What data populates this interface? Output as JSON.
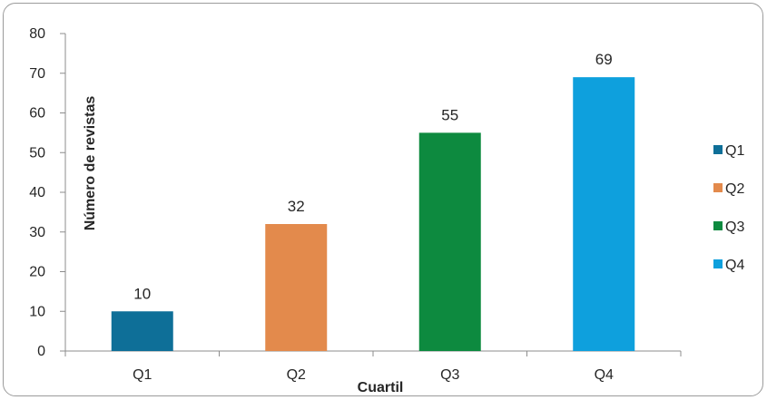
{
  "chart_data": {
    "type": "bar",
    "categories": [
      "Q1",
      "Q2",
      "Q3",
      "Q4"
    ],
    "values": [
      10,
      32,
      55,
      69
    ],
    "colors": [
      "#0e6f98",
      "#e38a4c",
      "#0d8a3f",
      "#0ea0dd"
    ],
    "xlabel": "Cuartil",
    "ylabel": "Número de revistas",
    "ylim": [
      0,
      80
    ],
    "yticks": [
      0,
      10,
      20,
      30,
      40,
      50,
      60,
      70,
      80
    ],
    "grid": false,
    "legend": {
      "position": "right",
      "entries": [
        "Q1",
        "Q2",
        "Q3",
        "Q4"
      ]
    },
    "data_labels": true
  }
}
